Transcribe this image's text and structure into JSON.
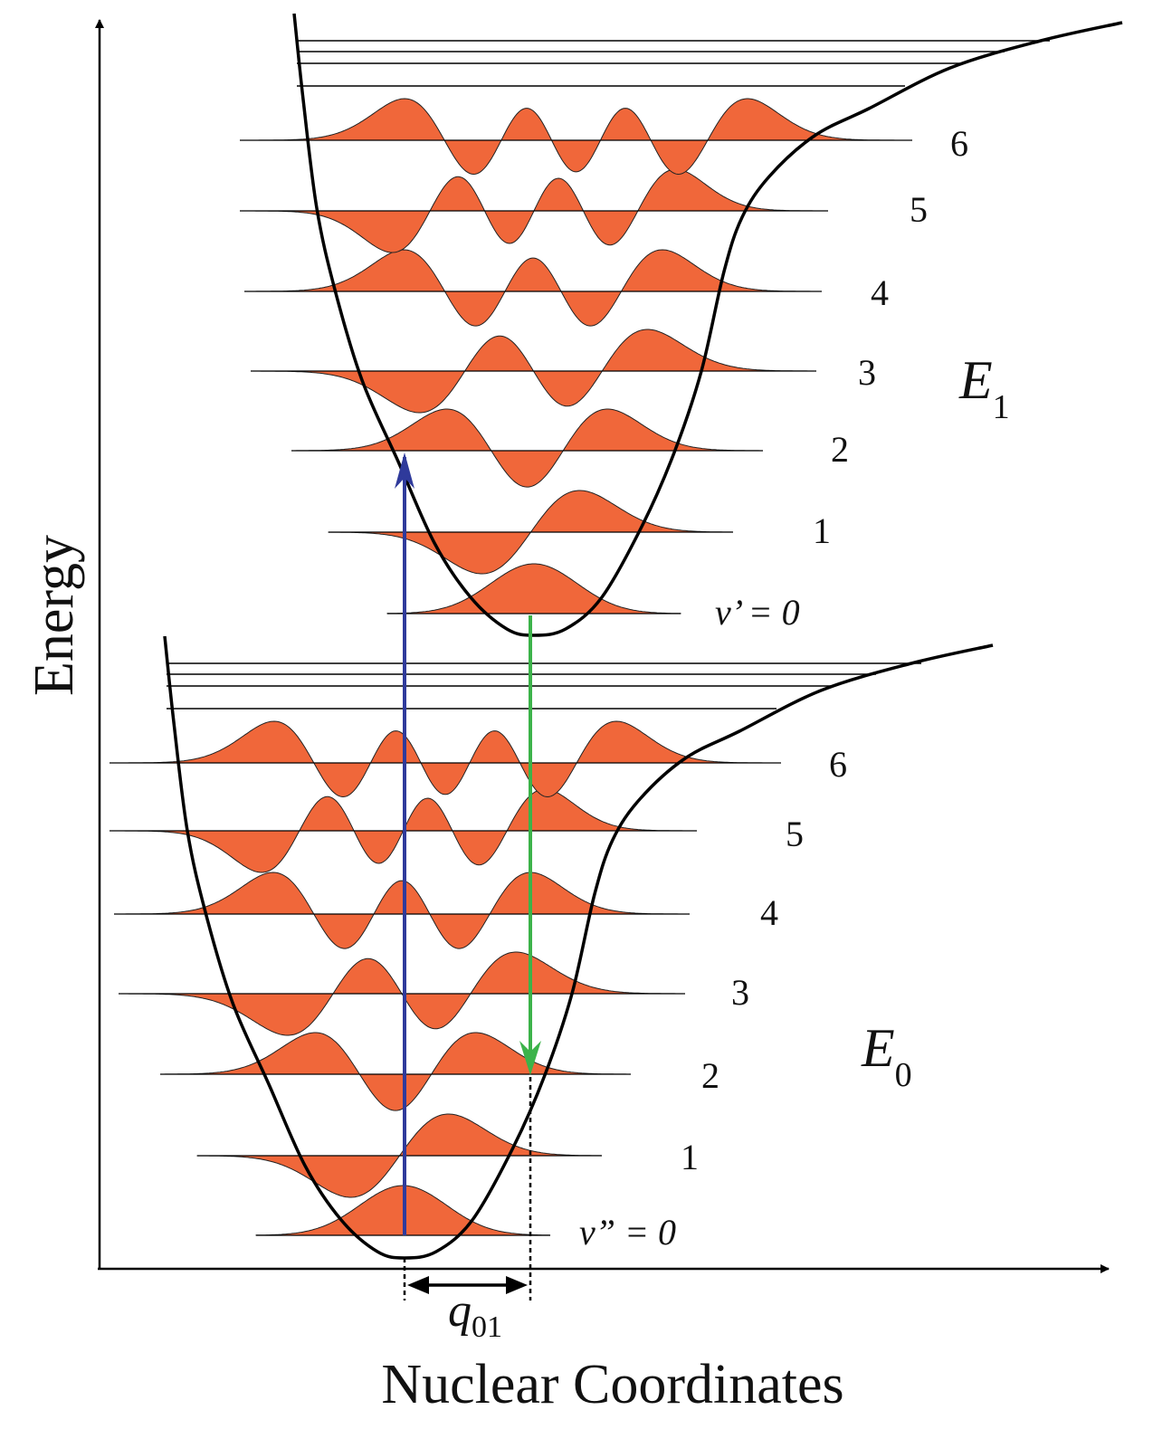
{
  "axes": {
    "y_label": "Energy",
    "x_label": "Nuclear Coordinates"
  },
  "upper_state": {
    "label": "E",
    "subscript": "1",
    "level_labels": [
      "v’ = 0",
      "1",
      "2",
      "3",
      "4",
      "5",
      "6"
    ]
  },
  "lower_state": {
    "label": "E",
    "subscript": "0",
    "level_labels": [
      "v” = 0",
      "1",
      "2",
      "3",
      "4",
      "5",
      "6"
    ]
  },
  "displacement": {
    "label": "q",
    "subscript": "01"
  },
  "colors": {
    "wavefunction": "#f0673a",
    "absorption": "#2f3a9b",
    "emission": "#3cb34a",
    "curve": "#000000"
  }
}
